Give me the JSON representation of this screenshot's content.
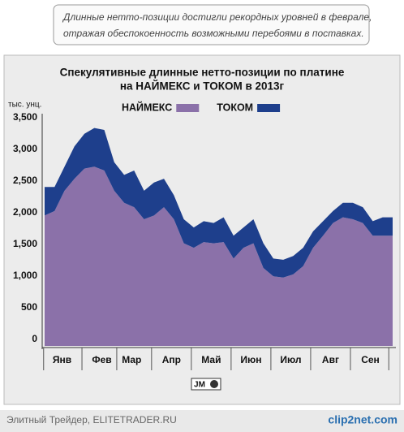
{
  "caption": [
    "Длинные нетто-позиции достигли рекордных уровней в феврале,",
    "отражая обеспокоенность возможными перебоями в поставках."
  ],
  "chart_data": {
    "type": "stacked_area",
    "title": [
      "Спекулятивные длинные нетто-позиции по платине",
      "на НАЙМЕКС и ТОКОМ в 2013г"
    ],
    "y_label": "тыс. унц.",
    "categories": [
      null,
      null,
      "Янв",
      null,
      null,
      null,
      "Фев",
      null,
      null,
      "Мар",
      null,
      null,
      null,
      "Апр",
      null,
      null,
      null,
      "Май",
      null,
      null,
      null,
      "Июн",
      null,
      null,
      null,
      "Июл",
      null,
      null,
      null,
      "Авг",
      null,
      null,
      null,
      "Сен",
      null,
      null
    ],
    "series": [
      {
        "name": "НАЙМЕКС",
        "color": "#8b71a9",
        "values": [
          2060,
          2130,
          2450,
          2640,
          2800,
          2830,
          2770,
          2450,
          2260,
          2190,
          2000,
          2060,
          2190,
          2000,
          1620,
          1550,
          1640,
          1620,
          1640,
          1380,
          1550,
          1620,
          1230,
          1100,
          1080,
          1130,
          1260,
          1550,
          1740,
          1940,
          2030,
          2000,
          1940,
          1740,
          1740,
          1740
        ]
      },
      {
        "name": "ТОКОМ",
        "color": "#1e3f8c",
        "values": [
          450,
          380,
          380,
          510,
          550,
          610,
          640,
          450,
          440,
          580,
          450,
          520,
          450,
          380,
          380,
          320,
          330,
          320,
          390,
          360,
          320,
          380,
          390,
          280,
          280,
          290,
          290,
          260,
          230,
          190,
          230,
          260,
          250,
          230,
          290,
          290
        ]
      }
    ],
    "ylim": [
      0,
      3500
    ],
    "yticks": [
      0,
      500,
      {
        "value": 1000,
        "label": "1,000"
      },
      {
        "value": 1500,
        "label": "1,500"
      },
      {
        "value": 2000,
        "label": "2,000"
      },
      {
        "value": 2500,
        "label": "2,500"
      },
      {
        "value": 3000,
        "label": "3,000"
      },
      {
        "value": 3500,
        "label": "3,500"
      }
    ],
    "grid": false
  },
  "logo": "JM",
  "footer": "Элитный Трейдер, ELITETRADER.RU",
  "watermark": "clip2net.com"
}
